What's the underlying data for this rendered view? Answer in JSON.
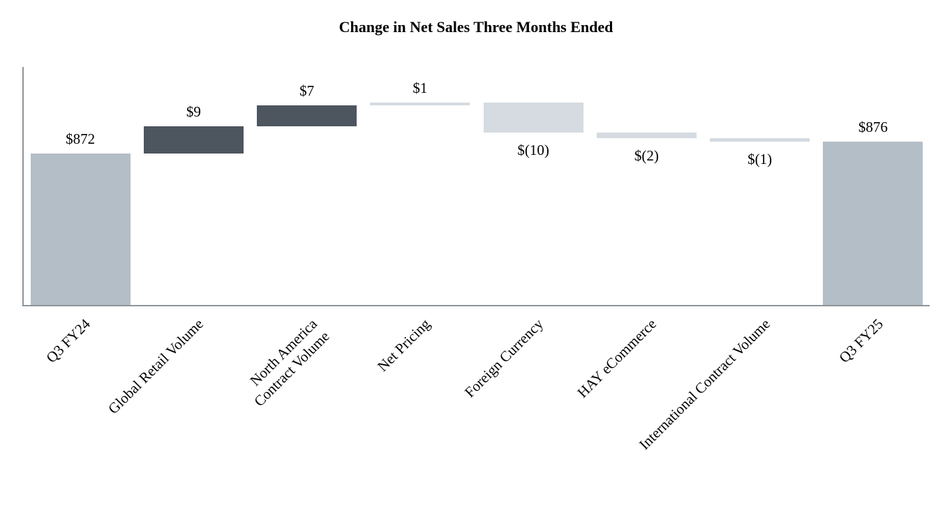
{
  "chart_data": {
    "type": "bar",
    "subtype": "waterfall",
    "title": "Change in Net Sales Three Months Ended",
    "grid": false,
    "legend": false,
    "ylim": [
      821,
      901
    ],
    "categories": [
      "Q3 FY24",
      "Global Retail Volume",
      "North America Contract Volume",
      "Net Pricing",
      "Foreign Currency",
      "HAY eCommerce",
      "International Contract Volume",
      "Q3 FY25"
    ],
    "bars": [
      {
        "category": "Q3 FY24",
        "lines": [
          "Q3 FY24"
        ],
        "value": 872,
        "label": "$872",
        "kind": "total",
        "color_key": "total"
      },
      {
        "category": "Global Retail Volume",
        "lines": [
          "Global Retail Volume"
        ],
        "value": 9,
        "label": "$9",
        "kind": "delta",
        "color_key": "dark"
      },
      {
        "category": "North America Contract Volume",
        "lines": [
          "North America",
          "Contract Volume"
        ],
        "value": 7,
        "label": "$7",
        "kind": "delta",
        "color_key": "dark"
      },
      {
        "category": "Net Pricing",
        "lines": [
          "Net Pricing"
        ],
        "value": 1,
        "label": "$1",
        "kind": "delta",
        "color_key": "light"
      },
      {
        "category": "Foreign Currency",
        "lines": [
          "Foreign Currency"
        ],
        "value": -10,
        "label": "$(10)",
        "kind": "delta",
        "color_key": "light"
      },
      {
        "category": "HAY eCommerce",
        "lines": [
          "HAY eCommerce"
        ],
        "value": -2,
        "label": "$(2)",
        "kind": "delta",
        "color_key": "light"
      },
      {
        "category": "International Contract Volume",
        "lines": [
          "International Contract Volume"
        ],
        "value": -1,
        "label": "$(1)",
        "kind": "delta",
        "color_key": "light"
      },
      {
        "category": "Q3 FY25",
        "lines": [
          "Q3 FY25"
        ],
        "value": 876,
        "label": "$876",
        "kind": "total",
        "color_key": "total"
      }
    ],
    "colors": {
      "total": "#b4bec7",
      "dark": "#4d555f",
      "light": "#d5dbe0",
      "axis": "#8f9499",
      "text": "#000000"
    }
  }
}
